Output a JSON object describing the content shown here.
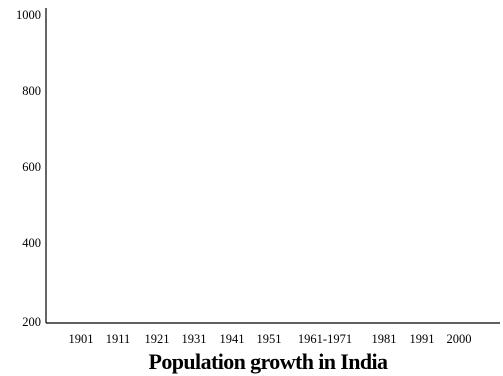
{
  "chart_data": {
    "type": "line",
    "title": "Population growth in India",
    "xlabel": "",
    "ylabel": "",
    "x_tick_labels": [
      "1901",
      "1911",
      "1921",
      "1931",
      "1941",
      "1951",
      "1961-1971",
      "1981",
      "1991",
      "2000"
    ],
    "y_tick_labels": [
      "1000",
      "800",
      "600",
      "400",
      "200"
    ],
    "ylim": [
      200,
      1000
    ],
    "grid": false,
    "series": []
  }
}
